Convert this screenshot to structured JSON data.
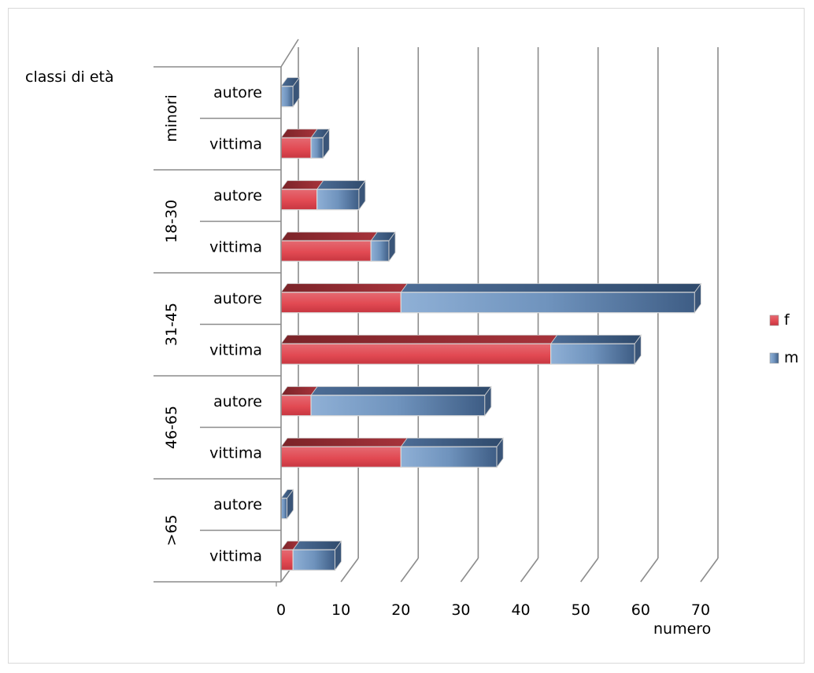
{
  "chart_data": {
    "type": "bar",
    "orientation": "horizontal",
    "stacked": true,
    "three_d": true,
    "title": "",
    "category_axis_title": "classi di età",
    "value_axis_title": "numero",
    "groups": [
      {
        "label": "minori",
        "subcategories": [
          "autore",
          "vittima"
        ]
      },
      {
        "label": "18-30",
        "subcategories": [
          "autore",
          "vittima"
        ]
      },
      {
        "label": "31-45",
        "subcategories": [
          "autore",
          "vittima"
        ]
      },
      {
        "label": "46-65",
        "subcategories": [
          "autore",
          "vittima"
        ]
      },
      {
        "label": ">65",
        "subcategories": [
          "autore",
          "vittima"
        ]
      }
    ],
    "categories": [
      "minori autore",
      "minori vittima",
      "18-30 autore",
      "18-30 vittima",
      "31-45 autore",
      "31-45 vittima",
      "46-65 autore",
      "46-65 vittima",
      ">65 autore",
      ">65 vittima"
    ],
    "series": [
      {
        "name": "f",
        "color": "#e24a53",
        "values": [
          0,
          5,
          6,
          15,
          20,
          45,
          5,
          20,
          0,
          2
        ]
      },
      {
        "name": "m",
        "color": "#6f93bd",
        "values": [
          2,
          2,
          7,
          3,
          49,
          14,
          29,
          16,
          1,
          7
        ]
      }
    ],
    "x_ticks": [
      "0",
      "10",
      "20",
      "30",
      "40",
      "50",
      "60",
      "70"
    ],
    "xlim": [
      0,
      70
    ],
    "grid": true,
    "legend_position": "right"
  }
}
